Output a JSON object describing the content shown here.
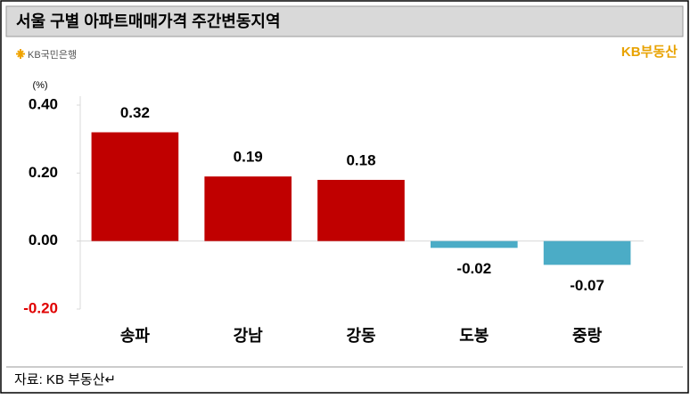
{
  "chart_data": {
    "type": "bar",
    "title": "서울 구별 아파트매매가격 주간변동지역",
    "bank_logo": "KB국민은행",
    "brand": "KB부동산",
    "unit": "(%)",
    "source": "자료: KB 부동산↵",
    "categories": [
      "송파",
      "강남",
      "강동",
      "도봉",
      "중랑"
    ],
    "values": [
      0.32,
      0.19,
      0.18,
      -0.02,
      -0.07
    ],
    "colors": [
      "#c00000",
      "#c00000",
      "#c00000",
      "#4bacc6",
      "#4bacc6"
    ],
    "ylim": [
      -0.2,
      0.4
    ],
    "yticks": [
      {
        "value": -0.2,
        "label": "-0.20"
      },
      {
        "value": 0,
        "label": "0.00"
      },
      {
        "value": 0.2,
        "label": "0.20"
      },
      {
        "value": 0.4,
        "label": "0.40"
      }
    ],
    "grid": false
  }
}
